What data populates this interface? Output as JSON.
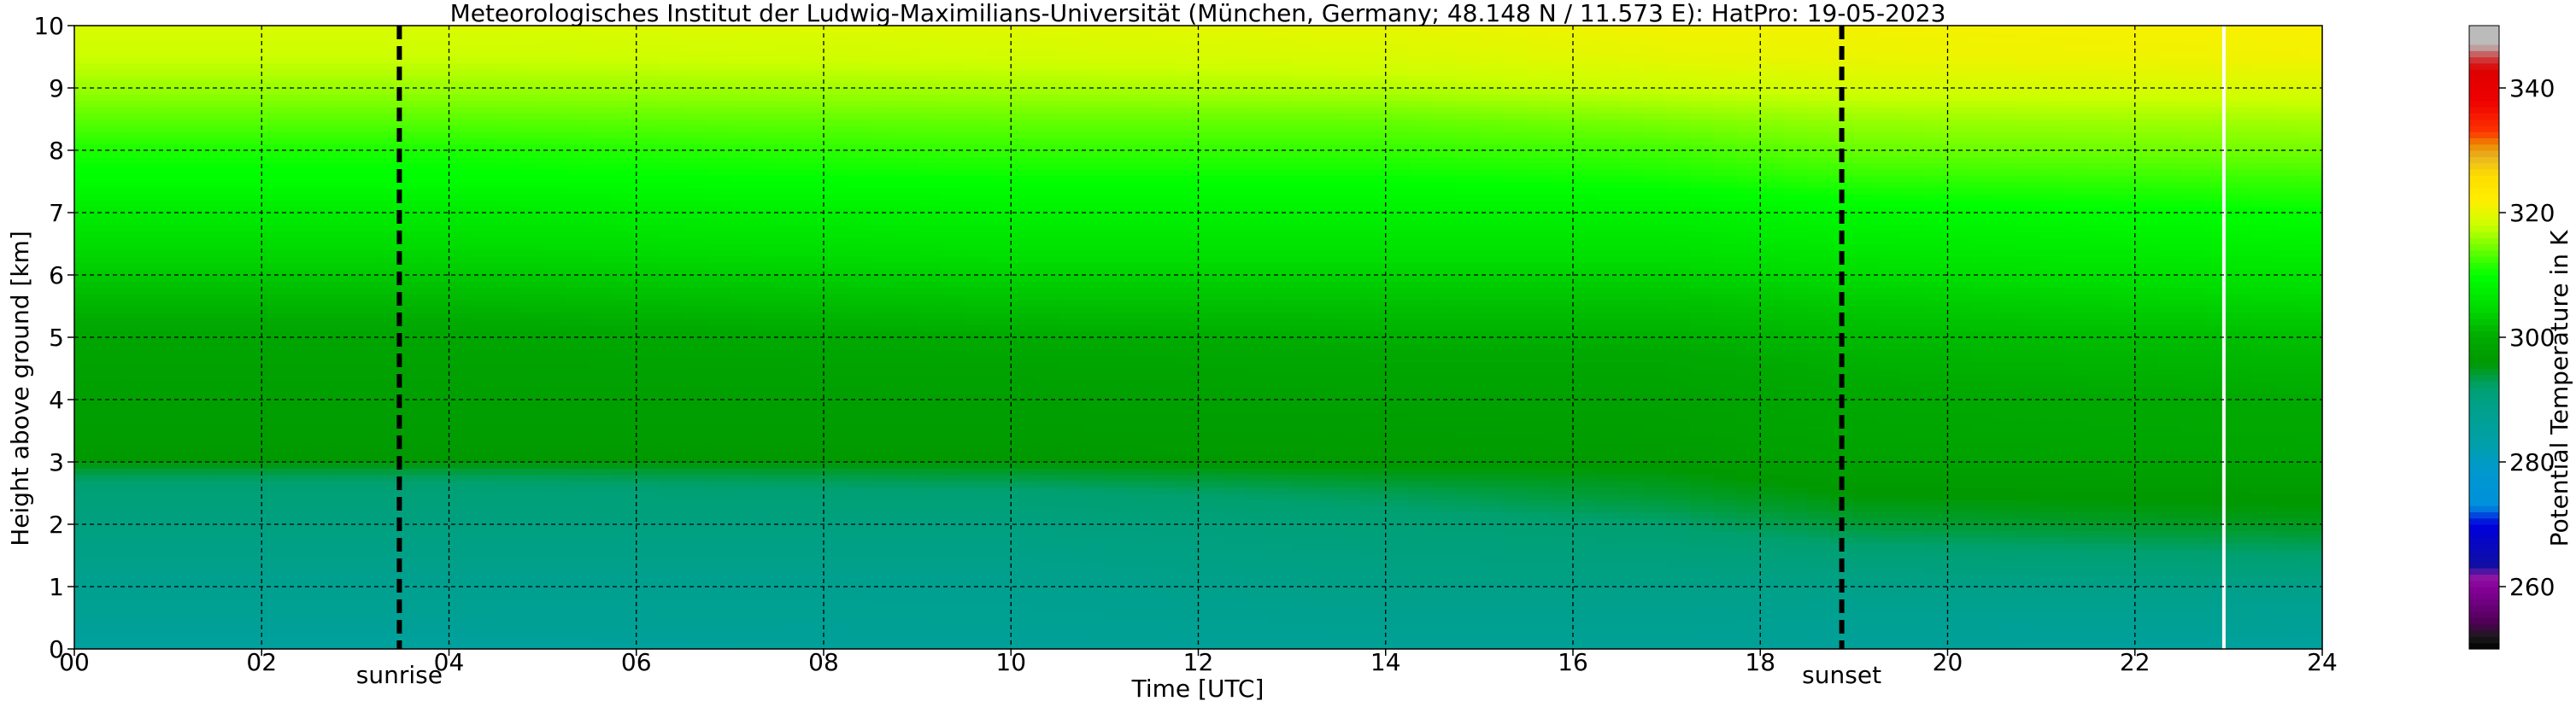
{
  "chart_data": {
    "type": "heatmap",
    "title": "Meteorologisches Institut der Ludwig-Maximilians-Universität (München, Germany; 48.148 N / 11.573 E):    HatPro: 19-05-2023",
    "xlabel": "Time [UTC]",
    "ylabel": "Height above ground [km]",
    "xlim": [
      0,
      24
    ],
    "ylim": [
      0,
      10
    ],
    "x_ticks": [
      "00",
      "02",
      "04",
      "06",
      "08",
      "10",
      "12",
      "14",
      "16",
      "18",
      "20",
      "22",
      "24"
    ],
    "y_ticks": [
      "0",
      "1",
      "2",
      "3",
      "4",
      "5",
      "6",
      "7",
      "8",
      "9",
      "10"
    ],
    "grid": true,
    "colorbar": {
      "label": "Potential Temperature in K",
      "range": [
        250,
        350
      ],
      "ticks": [
        "260",
        "280",
        "300",
        "320",
        "340"
      ],
      "colors": [
        {
          "value": 250,
          "color": "#000000"
        },
        {
          "value": 252,
          "color": "#1a1a1a"
        },
        {
          "value": 254,
          "color": "#4b0050"
        },
        {
          "value": 257,
          "color": "#6a007a"
        },
        {
          "value": 260,
          "color": "#880099"
        },
        {
          "value": 262,
          "color": "#8c1aa6"
        },
        {
          "value": 263,
          "color": "#1010a0"
        },
        {
          "value": 270,
          "color": "#0000dd"
        },
        {
          "value": 273,
          "color": "#0090dd"
        },
        {
          "value": 279,
          "color": "#0099cc"
        },
        {
          "value": 283,
          "color": "#00a0a8"
        },
        {
          "value": 288,
          "color": "#00a090"
        },
        {
          "value": 292,
          "color": "#00a070"
        },
        {
          "value": 296,
          "color": "#009900"
        },
        {
          "value": 300,
          "color": "#00aa00"
        },
        {
          "value": 305,
          "color": "#00dd00"
        },
        {
          "value": 310,
          "color": "#00ff00"
        },
        {
          "value": 314,
          "color": "#66ff00"
        },
        {
          "value": 318,
          "color": "#ccff00"
        },
        {
          "value": 322,
          "color": "#ffee00"
        },
        {
          "value": 326,
          "color": "#ffdd00"
        },
        {
          "value": 329,
          "color": "#e8b422"
        },
        {
          "value": 331,
          "color": "#ee8800"
        },
        {
          "value": 333,
          "color": "#ff3300"
        },
        {
          "value": 338,
          "color": "#ee0000"
        },
        {
          "value": 343,
          "color": "#dd0000"
        },
        {
          "value": 345,
          "color": "#cc4444"
        },
        {
          "value": 347,
          "color": "#bbbbbb"
        },
        {
          "value": 350,
          "color": "#bbbbbb"
        }
      ]
    },
    "events": [
      {
        "label": "sunrise",
        "time": 3.47
      },
      {
        "label": "sunset",
        "time": 18.87
      }
    ],
    "data_gap": {
      "time": 22.95
    },
    "profile_levels_km": [
      0,
      0.5,
      1,
      1.5,
      2,
      2.5,
      2.8,
      3,
      3.5,
      4,
      4.5,
      5,
      5.5,
      6,
      6.5,
      7,
      7.5,
      8,
      8.5,
      9,
      9.5,
      10
    ],
    "profiles": [
      {
        "time": 0,
        "theta": [
          285,
          287,
          288,
          289,
          290,
          291,
          293,
          296,
          297,
          297.5,
          298,
          299,
          301,
          303,
          305,
          307,
          309.5,
          311,
          313.5,
          316,
          318,
          319
        ]
      },
      {
        "time": 4,
        "theta": [
          285,
          287,
          288,
          289,
          290,
          291,
          293,
          296,
          297,
          297.5,
          298,
          299,
          301,
          303,
          305,
          307,
          309.5,
          311,
          313.5,
          316,
          318,
          319
        ]
      },
      {
        "time": 10,
        "theta": [
          286,
          287.5,
          288,
          289,
          290,
          291.5,
          294,
          296,
          297,
          297.5,
          298.5,
          300,
          302,
          304,
          306,
          308,
          310,
          312,
          314,
          316.5,
          318.5,
          319.5
        ]
      },
      {
        "time": 14,
        "theta": [
          286.5,
          288,
          289,
          290,
          291,
          293,
          295,
          296.5,
          297,
          298,
          299,
          300.5,
          302,
          304,
          306,
          308,
          310,
          312,
          314,
          317,
          319,
          320
        ]
      },
      {
        "time": 17,
        "theta": [
          286.5,
          288,
          289,
          290.5,
          292,
          294.5,
          295.5,
          296.5,
          297.5,
          298,
          299,
          300.5,
          302,
          304,
          306,
          308,
          310.5,
          312.5,
          315,
          318,
          320,
          321
        ]
      },
      {
        "time": 19,
        "theta": [
          286,
          287.5,
          289,
          291,
          294,
          296,
          297,
          298,
          299,
          299.5,
          300.5,
          301.5,
          303,
          305,
          307,
          309,
          311.5,
          314,
          316,
          318.5,
          320.5,
          321
        ]
      },
      {
        "time": 24,
        "theta": [
          285,
          287,
          289,
          292,
          295,
          296.5,
          297.5,
          298.5,
          299.5,
          300,
          301,
          302,
          304,
          306,
          308,
          310,
          312,
          314.5,
          316.5,
          319,
          321,
          321.5
        ]
      }
    ]
  }
}
